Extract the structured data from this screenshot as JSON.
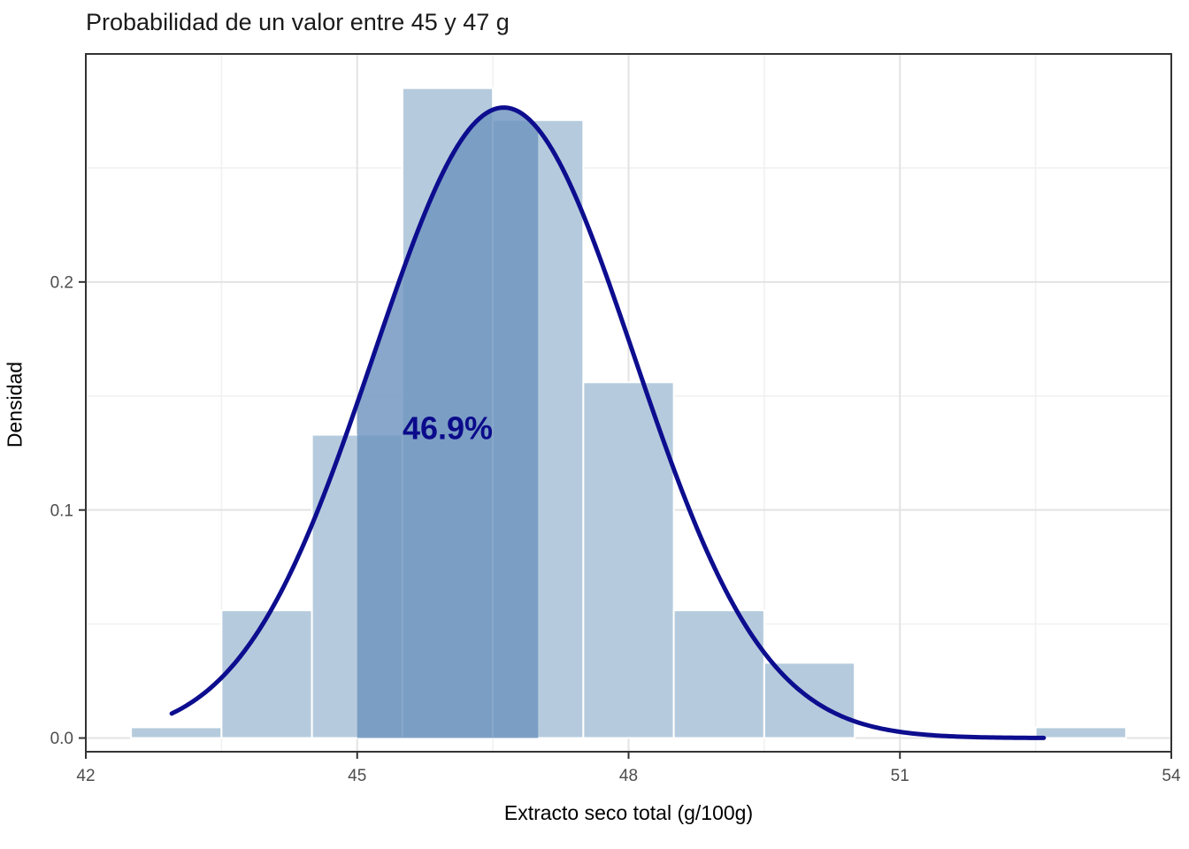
{
  "chart_data": {
    "type": "bar",
    "subtype": "histogram_with_density_curve",
    "title": "Probabilidad de un valor entre 45 y 47 g",
    "xlabel": "Extracto seco total (g/100g)",
    "ylabel": "Densidad",
    "x_range": [
      42,
      54
    ],
    "y_range": [
      -0.006,
      0.3
    ],
    "x_ticks": [
      {
        "value": 42,
        "label": "42"
      },
      {
        "value": 45,
        "label": "45"
      },
      {
        "value": 48,
        "label": "48"
      },
      {
        "value": 51,
        "label": "51"
      },
      {
        "value": 54,
        "label": "54"
      }
    ],
    "x_minor_gridlines": [
      43.5,
      46.5,
      49.5,
      52.5
    ],
    "y_ticks": [
      {
        "value": 0.0,
        "label": "0.0"
      },
      {
        "value": 0.1,
        "label": "0.1"
      },
      {
        "value": 0.2,
        "label": "0.2"
      }
    ],
    "y_minor_gridlines": [
      0.05,
      0.15,
      0.25
    ],
    "grid": "on",
    "legend": "none",
    "histogram": {
      "bin_width": 1,
      "fill": "#b5cbdd",
      "bar_stroke": "#ffffff",
      "bins": [
        {
          "x0": 42.5,
          "x1": 43.5,
          "density": 0.0047
        },
        {
          "x0": 43.5,
          "x1": 44.5,
          "density": 0.056
        },
        {
          "x0": 44.5,
          "x1": 45.5,
          "density": 0.133
        },
        {
          "x0": 45.5,
          "x1": 46.5,
          "density": 0.285
        },
        {
          "x0": 46.5,
          "x1": 47.5,
          "density": 0.271
        },
        {
          "x0": 47.5,
          "x1": 48.5,
          "density": 0.156
        },
        {
          "x0": 48.5,
          "x1": 49.5,
          "density": 0.056
        },
        {
          "x0": 49.5,
          "x1": 50.5,
          "density": 0.033
        },
        {
          "x0": 50.5,
          "x1": 51.5,
          "density": 0.0
        },
        {
          "x0": 51.5,
          "x1": 52.5,
          "density": 0.0
        },
        {
          "x0": 52.5,
          "x1": 53.5,
          "density": 0.0047
        }
      ]
    },
    "density_curve": {
      "shape": "normal",
      "mean": 46.62,
      "sd": 1.44,
      "peak_density": 0.2765,
      "x_start": 42.95,
      "x_end": 52.62,
      "color": "#0d0d8f",
      "stroke_width": 5
    },
    "shaded_region": {
      "x_from": 45,
      "x_to": 47,
      "probability_label": "46.9%",
      "fill": "rgba(110,148,190,0.82)",
      "label_color": "#0b0b8b",
      "label_x": 46.0,
      "label_y": 0.136,
      "label_font_size": 36
    },
    "style": {
      "panel_background": "#ffffff",
      "panel_border": "#333333",
      "major_grid": "#e3e3e3",
      "minor_grid": "#f1f1f1",
      "tick_color": "#333333",
      "tick_label_color": "#4d4d4d",
      "tick_label_size": 19
    }
  }
}
